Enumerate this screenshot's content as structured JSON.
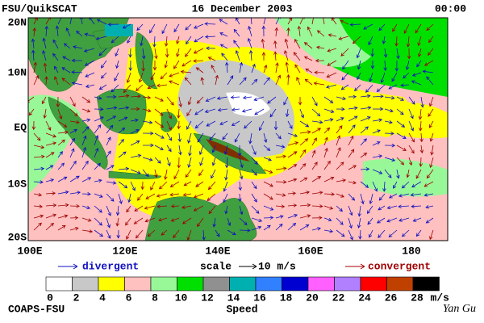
{
  "header": {
    "title": "FSU/QuikSCAT",
    "date": "16 December 2003",
    "time": "00:00"
  },
  "map": {
    "lat_labels": [
      "20N",
      "10N",
      "EQ",
      "10S",
      "20S"
    ],
    "lon_labels": [
      "100E",
      "120E",
      "140E",
      "160E",
      "180"
    ]
  },
  "legend": {
    "divergent": "divergent",
    "scale": "scale",
    "scale_value": "10 m/s",
    "convergent": "convergent"
  },
  "colorbar": {
    "ticks": [
      0,
      2,
      4,
      6,
      8,
      10,
      12,
      14,
      16,
      18,
      20,
      22,
      24,
      26,
      28
    ],
    "unit": "m/s",
    "label": "Speed",
    "colors": [
      "#ffffff",
      "#c8c8c8",
      "#ffff00",
      "#ffc0c0",
      "#98f898",
      "#00e000",
      "#909090",
      "#00b0b0",
      "#3080ff",
      "#0000d0",
      "#ff60ff",
      "#b080ff",
      "#ff0000",
      "#c04000",
      "#000000"
    ]
  },
  "footer": {
    "left": "COAPS-FSU",
    "right": "Yan Gu"
  }
}
